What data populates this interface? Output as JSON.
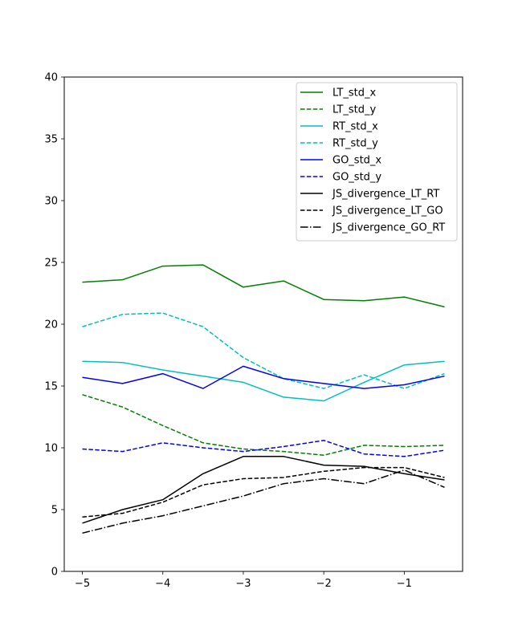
{
  "chart_data": {
    "type": "line",
    "title": "",
    "xlabel": "",
    "ylabel": "",
    "xlim": [
      -5.225,
      -0.275
    ],
    "ylim": [
      0,
      40
    ],
    "grid": false,
    "legend_position": "top-right",
    "x": [
      -5,
      -4.5,
      -4,
      -3.5,
      -3,
      -2.5,
      -2,
      -1.5,
      -1,
      -0.5
    ],
    "x_ticks": [
      -5,
      -4,
      -3,
      -2,
      -1
    ],
    "x_tick_labels": [
      "−5",
      "−4",
      "−3",
      "−2",
      "−1"
    ],
    "y_ticks": [
      0,
      5,
      10,
      15,
      20,
      25,
      30,
      35,
      40
    ],
    "y_tick_labels": [
      "0",
      "5",
      "10",
      "15",
      "20",
      "25",
      "30",
      "35",
      "40"
    ],
    "series": [
      {
        "name": "LT_std_x",
        "color": "#008000",
        "dash": "solid",
        "values": [
          23.4,
          23.6,
          24.7,
          24.8,
          23.0,
          23.5,
          22.0,
          21.9,
          22.2,
          21.4
        ]
      },
      {
        "name": "LT_std_y",
        "color": "#008000",
        "dash": "dashed",
        "values": [
          14.3,
          13.3,
          11.8,
          10.4,
          9.9,
          9.7,
          9.4,
          10.2,
          10.1,
          10.2
        ]
      },
      {
        "name": "RT_std_x",
        "color": "#00bfbf",
        "dash": "solid",
        "values": [
          17.0,
          16.9,
          16.3,
          15.8,
          15.3,
          14.1,
          13.8,
          15.3,
          16.7,
          17.0
        ]
      },
      {
        "name": "RT_std_y",
        "color": "#00bfbf",
        "dash": "dashed",
        "values": [
          19.8,
          20.8,
          20.9,
          19.8,
          17.3,
          15.6,
          14.8,
          15.9,
          14.8,
          16.0
        ]
      },
      {
        "name": "GO_std_x",
        "color": "#0000ff",
        "dash": "solid",
        "values": [
          15.7,
          15.2,
          16.0,
          14.8,
          16.6,
          15.6,
          15.2,
          14.8,
          15.1,
          15.8
        ]
      },
      {
        "name": "GO_std_y",
        "color": "#0000ff",
        "dash": "dashed",
        "values": [
          9.9,
          9.7,
          10.4,
          10.0,
          9.7,
          10.1,
          10.6,
          9.5,
          9.3,
          9.8
        ]
      },
      {
        "name": "JS_divergence_LT_RT",
        "color": "#000000",
        "dash": "solid",
        "values": [
          3.9,
          5.0,
          5.8,
          7.9,
          9.3,
          9.3,
          8.6,
          8.5,
          7.9,
          7.4
        ]
      },
      {
        "name": "JS_divergence_LT_GO",
        "color": "#000000",
        "dash": "dashed",
        "values": [
          4.4,
          4.7,
          5.6,
          7.0,
          7.5,
          7.6,
          8.1,
          8.4,
          8.4,
          7.6
        ]
      },
      {
        "name": "JS_divergence_GO_RT",
        "color": "#000000",
        "dash": "dashdot",
        "values": [
          3.1,
          3.9,
          4.5,
          5.3,
          6.1,
          7.1,
          7.5,
          7.1,
          8.2,
          6.8
        ]
      }
    ]
  }
}
